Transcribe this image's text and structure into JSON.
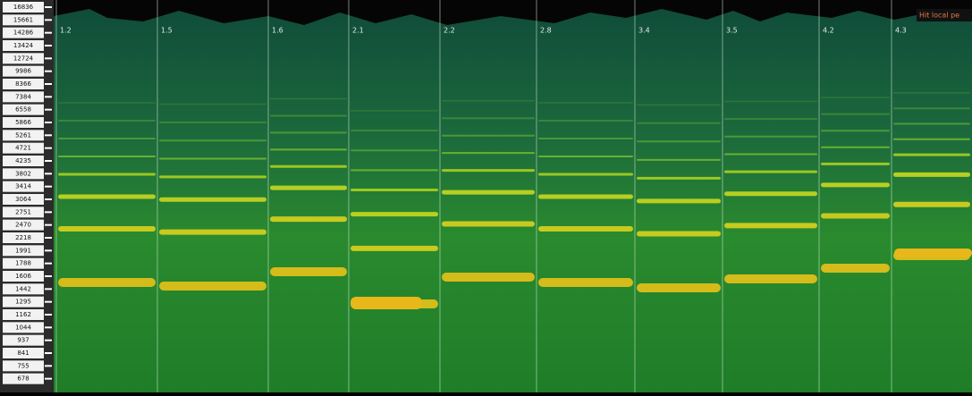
{
  "frequency_labels": [
    "16836",
    "15661",
    "14286",
    "13424",
    "12724",
    "9986",
    "8366",
    "7384",
    "6558",
    "5866",
    "5261",
    "4721",
    "4235",
    "3802",
    "3414",
    "3064",
    "2751",
    "2470",
    "2218",
    "1991",
    "1788",
    "1606",
    "1442",
    "1295",
    "1162",
    "1044",
    "937",
    "841",
    "755",
    "678"
  ],
  "time_labels": [
    "1.2",
    "1.5",
    "1.6",
    "2.1",
    "2.2",
    "2.8",
    "3.4",
    "3.5",
    "4.2",
    "4.3"
  ],
  "status_label": "Hit local pe"
}
